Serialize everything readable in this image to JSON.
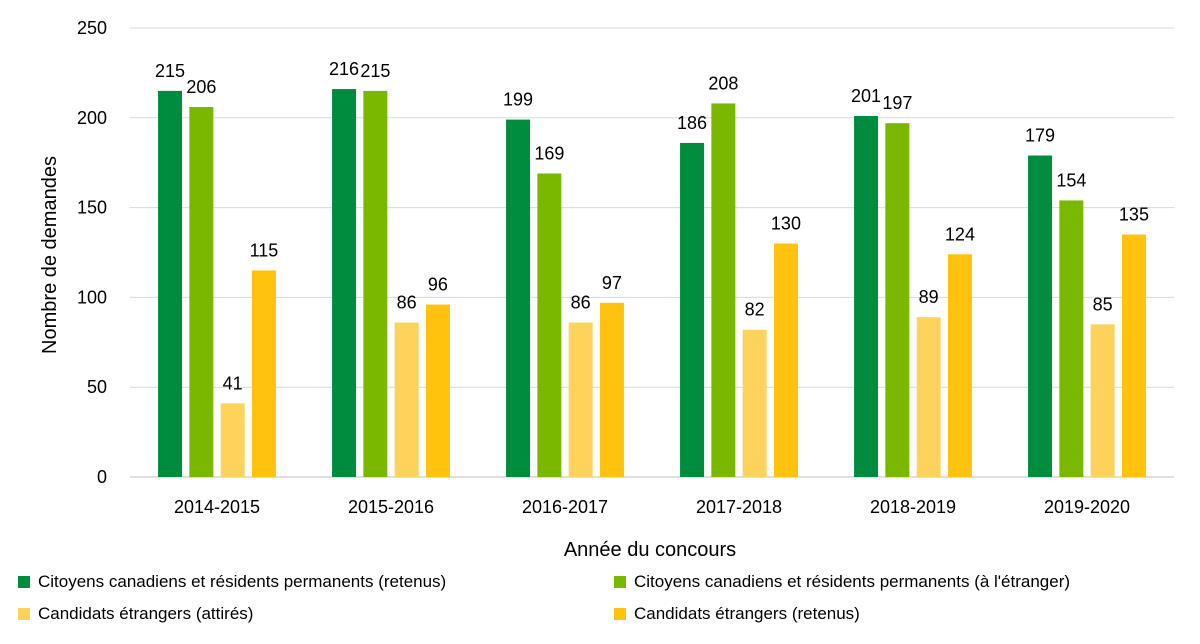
{
  "chart_data": {
    "type": "bar",
    "categories": [
      "2014-2015",
      "2015-2016",
      "2016-2017",
      "2017-2018",
      "2018-2019",
      "2019-2020"
    ],
    "series": [
      {
        "name": "Citoyens canadiens et résidents permanents (retenus)",
        "color": "#008C3E",
        "values": [
          215,
          216,
          199,
          186,
          201,
          179
        ]
      },
      {
        "name": "Citoyens canadiens et résidents permanents (à l'étranger)",
        "color": "#7AB800",
        "values": [
          206,
          215,
          169,
          208,
          197,
          154
        ]
      },
      {
        "name": "Candidats étrangers (attirés)",
        "color": "#FDD35C",
        "values": [
          41,
          86,
          86,
          82,
          89,
          85
        ]
      },
      {
        "name": "Candidats étrangers (retenus)",
        "color": "#FFC20E",
        "values": [
          115,
          96,
          97,
          130,
          124,
          135
        ]
      }
    ],
    "xlabel": "Année du concours",
    "ylabel": "Nombre de  demandes",
    "ylim": [
      0,
      250
    ],
    "yticks": [
      0,
      50,
      100,
      150,
      200,
      250
    ],
    "grid": true,
    "legend_position": "bottom"
  }
}
